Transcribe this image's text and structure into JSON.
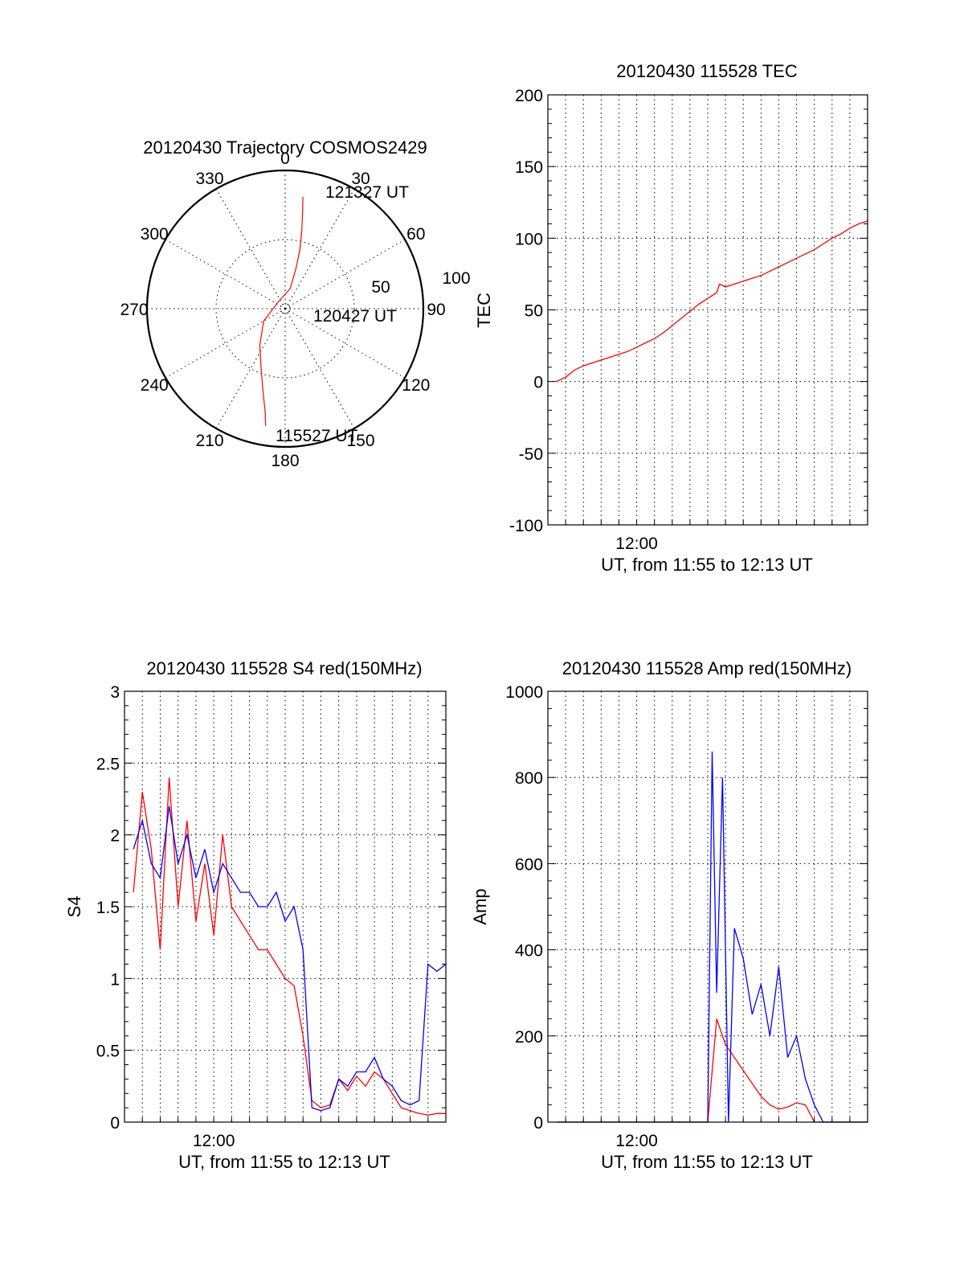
{
  "colors": {
    "red_series": "#ff0000",
    "blue_series": "#0000ff",
    "axes": "#000000",
    "background": "#ffffff"
  },
  "chart_data": [
    {
      "id": "trajectory",
      "type": "scatter",
      "projection": "polar",
      "title": "20120430 Trajectory COSMOS2429",
      "azimuth_labels": [
        "0",
        "30",
        "60",
        "90",
        "120",
        "150",
        "180",
        "210",
        "240",
        "270",
        "300",
        "330"
      ],
      "radial_labels": [
        "50",
        "100"
      ],
      "annotations": [
        "121327 UT",
        "120427 UT",
        "115527 UT"
      ],
      "series": [
        {
          "color": "#ff0000",
          "points": [
            {
              "az": 189.5,
              "r": 86
            },
            {
              "az": 191,
              "r": 76
            },
            {
              "az": 195,
              "r": 62
            },
            {
              "az": 203,
              "r": 45
            },
            {
              "az": 215,
              "r": 32
            },
            {
              "az": 240,
              "r": 18
            },
            {
              "az": 305,
              "r": 7
            },
            {
              "az": 14,
              "r": 15
            },
            {
              "az": 15,
              "r": 30
            },
            {
              "az": 14,
              "r": 44
            },
            {
              "az": 12,
              "r": 58
            },
            {
              "az": 10,
              "r": 73
            },
            {
              "az": 9,
              "r": 82
            }
          ]
        }
      ],
      "grid": true
    },
    {
      "id": "tec",
      "type": "line",
      "title": "20120430 115528 TEC",
      "xlabel": "UT, from 11:55 to 12:13 UT",
      "ylabel": "TEC",
      "xlim": [
        "11:55",
        "12:13"
      ],
      "ylim": [
        -100,
        200
      ],
      "yticks": [
        -100,
        -50,
        0,
        50,
        100,
        150,
        200
      ],
      "xtick_labels": [
        {
          "t": "12:00",
          "label": "12:00"
        }
      ],
      "grid": true,
      "series": [
        {
          "color": "#ff0000",
          "x": [
            "11:55:28",
            "11:56:00",
            "11:56:30",
            "11:57:00",
            "11:57:30",
            "11:58:00",
            "11:58:30",
            "11:59:00",
            "11:59:30",
            "12:00:00",
            "12:00:30",
            "12:01:00",
            "12:01:30",
            "12:02:00",
            "12:02:30",
            "12:03:00",
            "12:03:30",
            "12:04:00",
            "12:04:30",
            "12:04:40",
            "12:05:00",
            "12:05:30",
            "12:06:00",
            "12:06:30",
            "12:07:00",
            "12:07:30",
            "12:08:00",
            "12:08:30",
            "12:09:00",
            "12:09:30",
            "12:10:00",
            "12:10:30",
            "12:11:00",
            "12:11:30",
            "12:12:00",
            "12:12:30",
            "12:13:00"
          ],
          "y": [
            0,
            3,
            8,
            11,
            13,
            15,
            17,
            19,
            21,
            24,
            27,
            30,
            34,
            39,
            44,
            49,
            54,
            58,
            62,
            68,
            66,
            68,
            70,
            72,
            74,
            77,
            80,
            83,
            86,
            89,
            92,
            96,
            100,
            103,
            107,
            110,
            112
          ]
        }
      ]
    },
    {
      "id": "s4",
      "type": "line",
      "title": "20120430 115528 S4 red(150MHz)",
      "xlabel": "UT, from 11:55 to 12:13 UT",
      "ylabel": "S4",
      "xlim": [
        "11:55",
        "12:13"
      ],
      "ylim": [
        0,
        3
      ],
      "yticks": [
        0,
        0.5,
        1,
        1.5,
        2,
        2.5,
        3
      ],
      "xtick_labels": [
        {
          "t": "12:00",
          "label": "12:00"
        }
      ],
      "grid": true,
      "series": [
        {
          "color": "#ff0000",
          "x": [
            "11:55:30",
            "11:56:00",
            "11:56:30",
            "11:57:00",
            "11:57:30",
            "11:58:00",
            "11:58:30",
            "11:59:00",
            "11:59:30",
            "12:00:00",
            "12:00:30",
            "12:01:00",
            "12:01:30",
            "12:02:00",
            "12:02:30",
            "12:03:00",
            "12:03:30",
            "12:04:00",
            "12:04:30",
            "12:05:00",
            "12:05:30",
            "12:06:00",
            "12:06:30",
            "12:07:00",
            "12:07:30",
            "12:08:00",
            "12:08:30",
            "12:09:00",
            "12:09:30",
            "12:10:00",
            "12:10:30",
            "12:11:00",
            "12:11:30",
            "12:12:00",
            "12:12:30",
            "12:13:00"
          ],
          "y": [
            1.6,
            2.3,
            1.9,
            1.2,
            2.4,
            1.5,
            2.1,
            1.4,
            1.8,
            1.3,
            2.0,
            1.5,
            1.4,
            1.3,
            1.2,
            1.2,
            1.1,
            1.0,
            0.95,
            0.6,
            0.15,
            0.1,
            0.12,
            0.3,
            0.22,
            0.32,
            0.25,
            0.35,
            0.3,
            0.2,
            0.1,
            0.08,
            0.06,
            0.05,
            0.06,
            0.06
          ]
        },
        {
          "color": "#0000ff",
          "x": [
            "11:55:30",
            "11:56:00",
            "11:56:30",
            "11:57:00",
            "11:57:30",
            "11:58:00",
            "11:58:30",
            "11:59:00",
            "11:59:30",
            "12:00:00",
            "12:00:30",
            "12:01:00",
            "12:01:30",
            "12:02:00",
            "12:02:30",
            "12:03:00",
            "12:03:30",
            "12:04:00",
            "12:04:30",
            "12:05:00",
            "12:05:30",
            "12:06:00",
            "12:06:30",
            "12:07:00",
            "12:07:30",
            "12:08:00",
            "12:08:30",
            "12:09:00",
            "12:09:30",
            "12:10:00",
            "12:10:30",
            "12:11:00",
            "12:11:30",
            "12:12:00",
            "12:12:30",
            "12:13:00"
          ],
          "y": [
            1.9,
            2.1,
            1.8,
            1.7,
            2.2,
            1.8,
            2.0,
            1.7,
            1.9,
            1.6,
            1.8,
            1.7,
            1.6,
            1.6,
            1.5,
            1.5,
            1.6,
            1.4,
            1.5,
            1.2,
            0.1,
            0.08,
            0.1,
            0.3,
            0.25,
            0.35,
            0.35,
            0.45,
            0.3,
            0.25,
            0.15,
            0.12,
            0.15,
            1.1,
            1.05,
            1.1
          ]
        }
      ]
    },
    {
      "id": "amp",
      "type": "line",
      "title": "20120430 115528 Amp red(150MHz)",
      "xlabel": "UT, from 11:55 to 12:13 UT",
      "ylabel": "Amp",
      "xlim": [
        "11:55",
        "12:13"
      ],
      "ylim": [
        0,
        1000
      ],
      "yticks": [
        0,
        200,
        400,
        600,
        800,
        1000
      ],
      "xtick_labels": [
        {
          "t": "12:00",
          "label": "12:00"
        }
      ],
      "grid": true,
      "series": [
        {
          "color": "#ff0000",
          "x": [
            "11:55:30",
            "12:03:30",
            "12:04:00",
            "12:04:30",
            "12:05:00",
            "12:05:30",
            "12:06:00",
            "12:06:30",
            "12:07:00",
            "12:07:30",
            "12:08:00",
            "12:08:30",
            "12:09:00",
            "12:09:30",
            "12:10:00",
            "12:10:30",
            "12:11:00",
            "12:13:00"
          ],
          "y": [
            0,
            0,
            0,
            240,
            180,
            150,
            120,
            90,
            60,
            40,
            30,
            35,
            45,
            40,
            0,
            0,
            0,
            0
          ]
        },
        {
          "color": "#0000ff",
          "x": [
            "11:55:30",
            "12:03:30",
            "12:04:00",
            "12:04:15",
            "12:04:30",
            "12:04:50",
            "12:05:10",
            "12:05:30",
            "12:06:00",
            "12:06:30",
            "12:07:00",
            "12:07:30",
            "12:08:00",
            "12:08:30",
            "12:09:00",
            "12:09:30",
            "12:10:00",
            "12:10:30",
            "12:11:00",
            "12:13:00"
          ],
          "y": [
            0,
            0,
            0,
            860,
            300,
            800,
            0,
            450,
            380,
            250,
            320,
            200,
            360,
            150,
            200,
            100,
            40,
            0,
            0,
            0
          ]
        }
      ]
    }
  ]
}
